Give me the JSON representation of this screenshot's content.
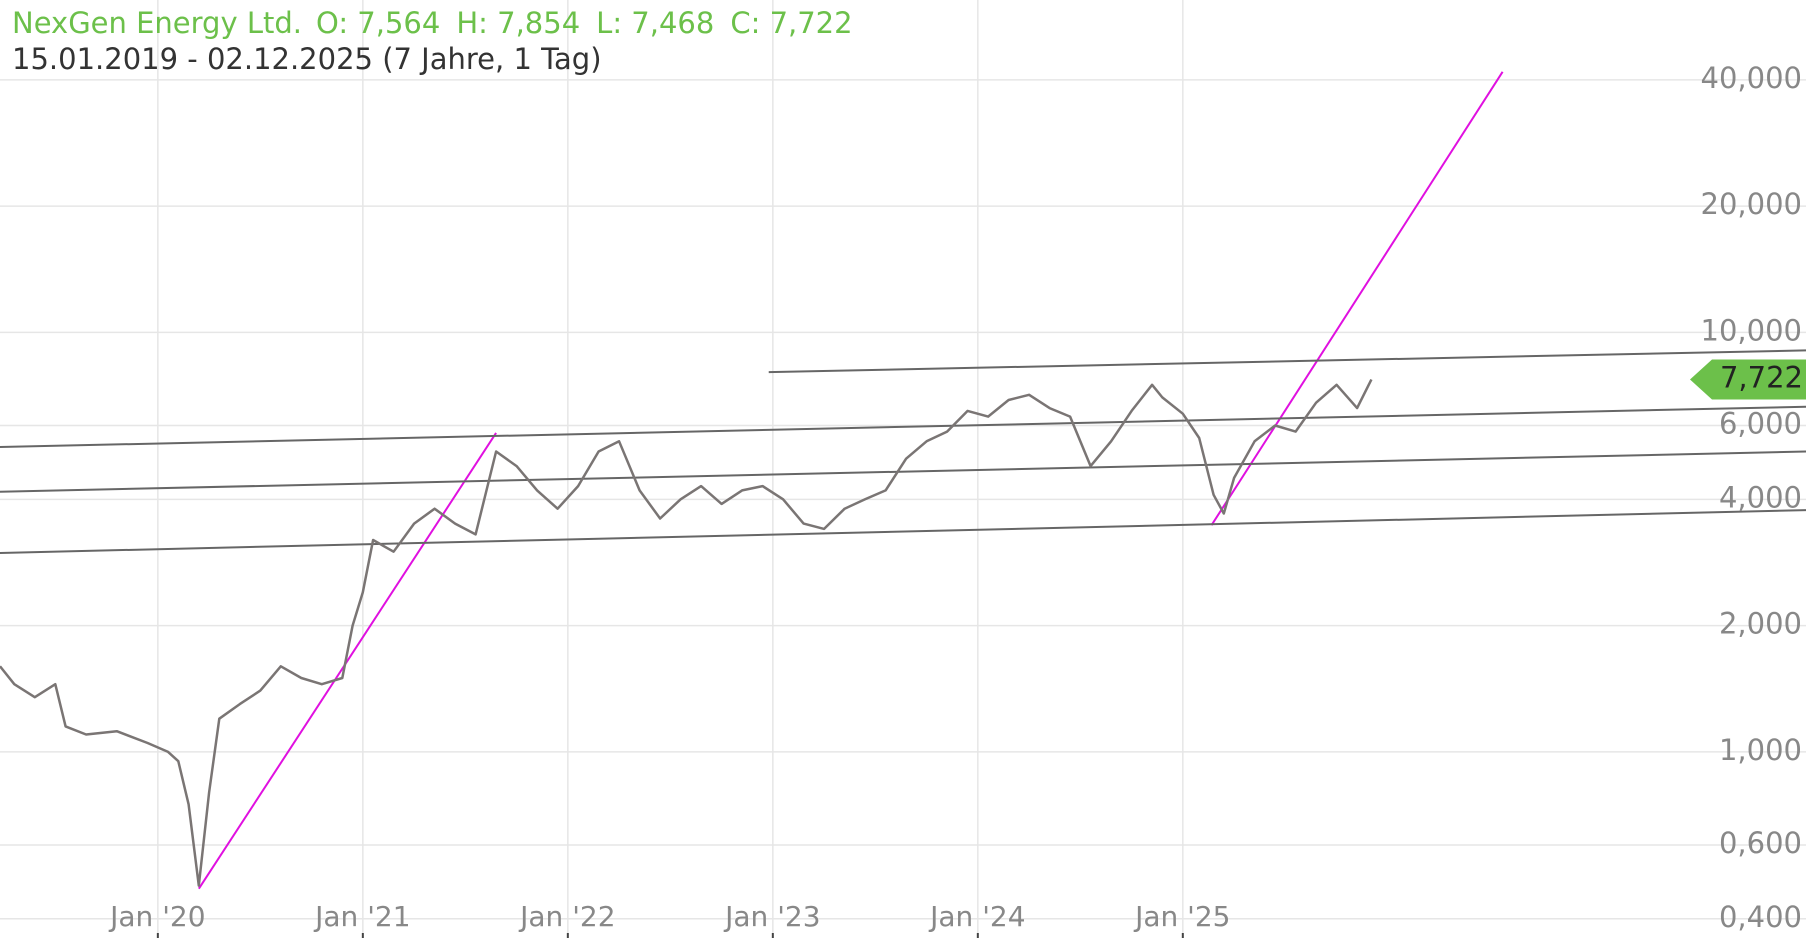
{
  "chart_data": {
    "type": "line",
    "title": "NexGen Energy Ltd.",
    "ohlc": [
      "O: 7,564",
      "H: 7,854",
      "L: 7,468",
      "C: 7,722"
    ],
    "subtitle": "15.01.2019 - 02.12.2025  (7 Jahre, 1 Tag)",
    "log_scale": true,
    "grid": true,
    "color": "#7a7574",
    "x": [
      2019.23,
      2019.3,
      2019.4,
      2019.5,
      2019.55,
      2019.65,
      2019.8,
      2019.95,
      2020.05,
      2020.1,
      2020.15,
      2020.2,
      2020.25,
      2020.3,
      2020.4,
      2020.5,
      2020.6,
      2020.7,
      2020.8,
      2020.9,
      2020.95,
      2021.0,
      2021.05,
      2021.15,
      2021.25,
      2021.35,
      2021.45,
      2021.55,
      2021.65,
      2021.75,
      2021.85,
      2021.95,
      2022.05,
      2022.15,
      2022.25,
      2022.35,
      2022.45,
      2022.55,
      2022.65,
      2022.75,
      2022.85,
      2022.95,
      2023.05,
      2023.15,
      2023.25,
      2023.35,
      2023.45,
      2023.55,
      2023.65,
      2023.75,
      2023.85,
      2023.95,
      2024.05,
      2024.15,
      2024.25,
      2024.35,
      2024.45,
      2024.55,
      2024.65,
      2024.75,
      2024.85,
      2024.9,
      2025.0,
      2025.08,
      2025.15,
      2025.2,
      2025.25,
      2025.35,
      2025.45,
      2025.55,
      2025.65,
      2025.75,
      2025.85,
      2025.92
    ],
    "values": [
      1.6,
      1.45,
      1.35,
      1.45,
      1.15,
      1.1,
      1.12,
      1.05,
      1.0,
      0.95,
      0.75,
      0.48,
      0.8,
      1.2,
      1.3,
      1.4,
      1.6,
      1.5,
      1.45,
      1.5,
      2.0,
      2.4,
      3.2,
      3.0,
      3.5,
      3.8,
      3.5,
      3.3,
      5.2,
      4.8,
      4.2,
      3.8,
      4.3,
      5.2,
      5.5,
      4.2,
      3.6,
      4.0,
      4.3,
      3.9,
      4.2,
      4.3,
      4.0,
      3.5,
      3.4,
      3.8,
      4.0,
      4.2,
      5.0,
      5.5,
      5.8,
      6.5,
      6.3,
      6.9,
      7.1,
      6.6,
      6.3,
      4.8,
      5.5,
      6.5,
      7.5,
      7.0,
      6.4,
      5.6,
      4.1,
      3.7,
      4.5,
      5.5,
      6.0,
      5.8,
      6.8,
      7.5,
      6.6,
      7.722
    ],
    "last_price": {
      "value": 7.722,
      "label": "7,722"
    },
    "price_tag_color": "#6cc04a",
    "lines": [
      {
        "x": [
          2020.2,
          2021.65
        ],
        "y": [
          0.472,
          5.76
        ],
        "color": "#e010e0"
      },
      {
        "x": [
          2025.14,
          2026.56
        ],
        "y": [
          3.47,
          41.8
        ],
        "color": "#e010e0"
      },
      {
        "x": [
          2019.23,
          2028.04
        ],
        "y": [
          5.33,
          6.65
        ],
        "color": "#666666"
      },
      {
        "x": [
          2019.23,
          2028.04
        ],
        "y": [
          4.17,
          5.2
        ],
        "color": "#666666"
      },
      {
        "x": [
          2019.23,
          2028.04
        ],
        "y": [
          2.98,
          3.77
        ],
        "color": "#666666"
      },
      {
        "x": [
          2022.98,
          2028.04
        ],
        "y": [
          8.04,
          9.06
        ],
        "color": "#666666"
      }
    ],
    "xlim": [
      2019.23,
      2028.04
    ],
    "xticks": [
      {
        "value": 2020,
        "label": "Jan '20"
      },
      {
        "value": 2021,
        "label": "Jan '21"
      },
      {
        "value": 2022,
        "label": "Jan '22"
      },
      {
        "value": 2023,
        "label": "Jan '23"
      },
      {
        "value": 2024,
        "label": "Jan '24"
      },
      {
        "value": 2025,
        "label": "Jan '25"
      }
    ],
    "ylim": [
      0.36,
      62
    ],
    "yticks": [
      {
        "value": 0.4,
        "label": "0,400"
      },
      {
        "value": 0.6,
        "label": "0,600"
      },
      {
        "value": 1,
        "label": "1,000"
      },
      {
        "value": 2,
        "label": "2,000"
      },
      {
        "value": 4,
        "label": "4,000"
      },
      {
        "value": 6,
        "label": "6,000"
      },
      {
        "value": 10,
        "label": "10,000"
      },
      {
        "value": 20,
        "label": "20,000"
      },
      {
        "value": 40,
        "label": "40,000"
      }
    ]
  }
}
